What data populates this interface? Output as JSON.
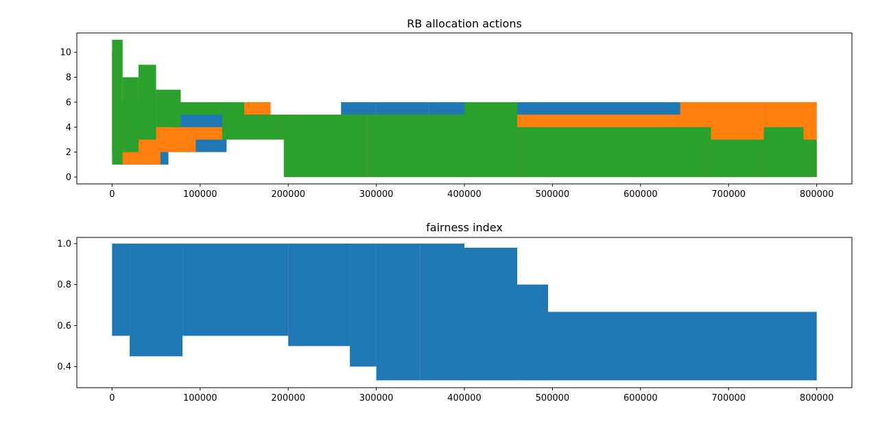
{
  "chart_data": [
    {
      "type": "line",
      "title": "RB allocation actions",
      "xlabel": "",
      "ylabel": "",
      "xlim": [
        -40000,
        840000
      ],
      "ylim": [
        -0.55,
        11.55
      ],
      "xticks": [
        0,
        100000,
        200000,
        300000,
        400000,
        500000,
        600000,
        700000,
        800000
      ],
      "xtick_labels": [
        "0",
        "100000",
        "200000",
        "300000",
        "400000",
        "500000",
        "600000",
        "700000",
        "800000"
      ],
      "yticks": [
        0,
        2,
        4,
        6,
        8,
        10
      ],
      "ytick_labels": [
        "0",
        "2",
        "4",
        "6",
        "8",
        "10"
      ],
      "grid": false,
      "legend": "none",
      "series": [
        {
          "color": "#1f77b4",
          "bands": [
            {
              "x": [
                0,
                10000
              ],
              "y": [
                2,
                10
              ]
            },
            {
              "x": [
                10000,
                30000
              ],
              "y": [
                1,
                6
              ]
            },
            {
              "x": [
                30000,
                64000
              ],
              "y": [
                1,
                4
              ]
            },
            {
              "x": [
                64000,
                130000
              ],
              "y": [
                2,
                6
              ]
            },
            {
              "x": [
                130000,
                180000
              ],
              "y": [
                3,
                5
              ]
            },
            {
              "x": [
                180000,
                260000
              ],
              "y": [
                3,
                5
              ]
            },
            {
              "x": [
                260000,
                300000
              ],
              "y": [
                3,
                6
              ]
            },
            {
              "x": [
                300000,
                360000
              ],
              "y": [
                3,
                6
              ]
            },
            {
              "x": [
                360000,
                400000
              ],
              "y": [
                0,
                6
              ]
            },
            {
              "x": [
                400000,
                800000
              ],
              "y": [
                0,
                6
              ]
            }
          ]
        },
        {
          "color": "#ff7f0e",
          "bands": [
            {
              "x": [
                0,
                10000
              ],
              "y": [
                2,
                10
              ]
            },
            {
              "x": [
                10000,
                55000
              ],
              "y": [
                1,
                4
              ]
            },
            {
              "x": [
                55000,
                95000
              ],
              "y": [
                2,
                4
              ]
            },
            {
              "x": [
                95000,
                128000
              ],
              "y": [
                3,
                4
              ]
            },
            {
              "x": [
                128000,
                180000
              ],
              "y": [
                4,
                6
              ]
            },
            {
              "x": [
                180000,
                270000
              ],
              "y": [
                3,
                5
              ]
            },
            {
              "x": [
                270000,
                460000
              ],
              "y": [
                0,
                5
              ]
            },
            {
              "x": [
                460000,
                645000
              ],
              "y": [
                0,
                5
              ]
            },
            {
              "x": [
                645000,
                742000
              ],
              "y": [
                0,
                6
              ]
            },
            {
              "x": [
                742000,
                800000
              ],
              "y": [
                0,
                6
              ]
            }
          ]
        },
        {
          "color": "#2ca02c",
          "bands": [
            {
              "x": [
                0,
                12000
              ],
              "y": [
                1,
                11
              ]
            },
            {
              "x": [
                12000,
                30000
              ],
              "y": [
                2,
                8
              ]
            },
            {
              "x": [
                30000,
                50000
              ],
              "y": [
                3,
                9
              ]
            },
            {
              "x": [
                50000,
                78000
              ],
              "y": [
                4,
                7
              ]
            },
            {
              "x": [
                78000,
                125000
              ],
              "y": [
                5,
                6
              ]
            },
            {
              "x": [
                125000,
                150000
              ],
              "y": [
                3,
                6
              ]
            },
            {
              "x": [
                150000,
                195000
              ],
              "y": [
                3,
                5
              ]
            },
            {
              "x": [
                195000,
                290000
              ],
              "y": [
                0,
                5
              ]
            },
            {
              "x": [
                290000,
                400000
              ],
              "y": [
                0,
                5
              ]
            },
            {
              "x": [
                400000,
                460000
              ],
              "y": [
                0,
                6
              ]
            },
            {
              "x": [
                460000,
                680000
              ],
              "y": [
                0,
                4
              ]
            },
            {
              "x": [
                680000,
                740000
              ],
              "y": [
                0,
                3
              ]
            },
            {
              "x": [
                740000,
                785000
              ],
              "y": [
                0,
                4
              ]
            },
            {
              "x": [
                785000,
                800000
              ],
              "y": [
                0,
                3
              ]
            }
          ]
        }
      ]
    },
    {
      "type": "line",
      "title": "fairness index",
      "xlabel": "",
      "ylabel": "",
      "xlim": [
        -40000,
        840000
      ],
      "ylim": [
        0.297,
        1.03
      ],
      "xticks": [
        0,
        100000,
        200000,
        300000,
        400000,
        500000,
        600000,
        700000,
        800000
      ],
      "xtick_labels": [
        "0",
        "100000",
        "200000",
        "300000",
        "400000",
        "500000",
        "600000",
        "700000",
        "800000"
      ],
      "yticks": [
        0.4,
        0.6,
        0.8,
        1.0
      ],
      "ytick_labels": [
        "0.4",
        "0.6",
        "0.8",
        "1.0"
      ],
      "grid": false,
      "legend": "none",
      "series": [
        {
          "color": "#1f77b4",
          "bands": [
            {
              "x": [
                0,
                20000
              ],
              "y": [
                0.55,
                1.0
              ]
            },
            {
              "x": [
                20000,
                80000
              ],
              "y": [
                0.45,
                1.0
              ]
            },
            {
              "x": [
                80000,
                200000
              ],
              "y": [
                0.55,
                1.0
              ]
            },
            {
              "x": [
                200000,
                270000
              ],
              "y": [
                0.5,
                1.0
              ]
            },
            {
              "x": [
                270000,
                300000
              ],
              "y": [
                0.4,
                1.0
              ]
            },
            {
              "x": [
                300000,
                350000
              ],
              "y": [
                0.333,
                1.0
              ]
            },
            {
              "x": [
                350000,
                400000
              ],
              "y": [
                0.333,
                1.0
              ]
            },
            {
              "x": [
                400000,
                460000
              ],
              "y": [
                0.333,
                0.98
              ]
            },
            {
              "x": [
                460000,
                495000
              ],
              "y": [
                0.333,
                0.8
              ]
            },
            {
              "x": [
                495000,
                800000
              ],
              "y": [
                0.333,
                0.667
              ]
            }
          ]
        }
      ]
    }
  ]
}
